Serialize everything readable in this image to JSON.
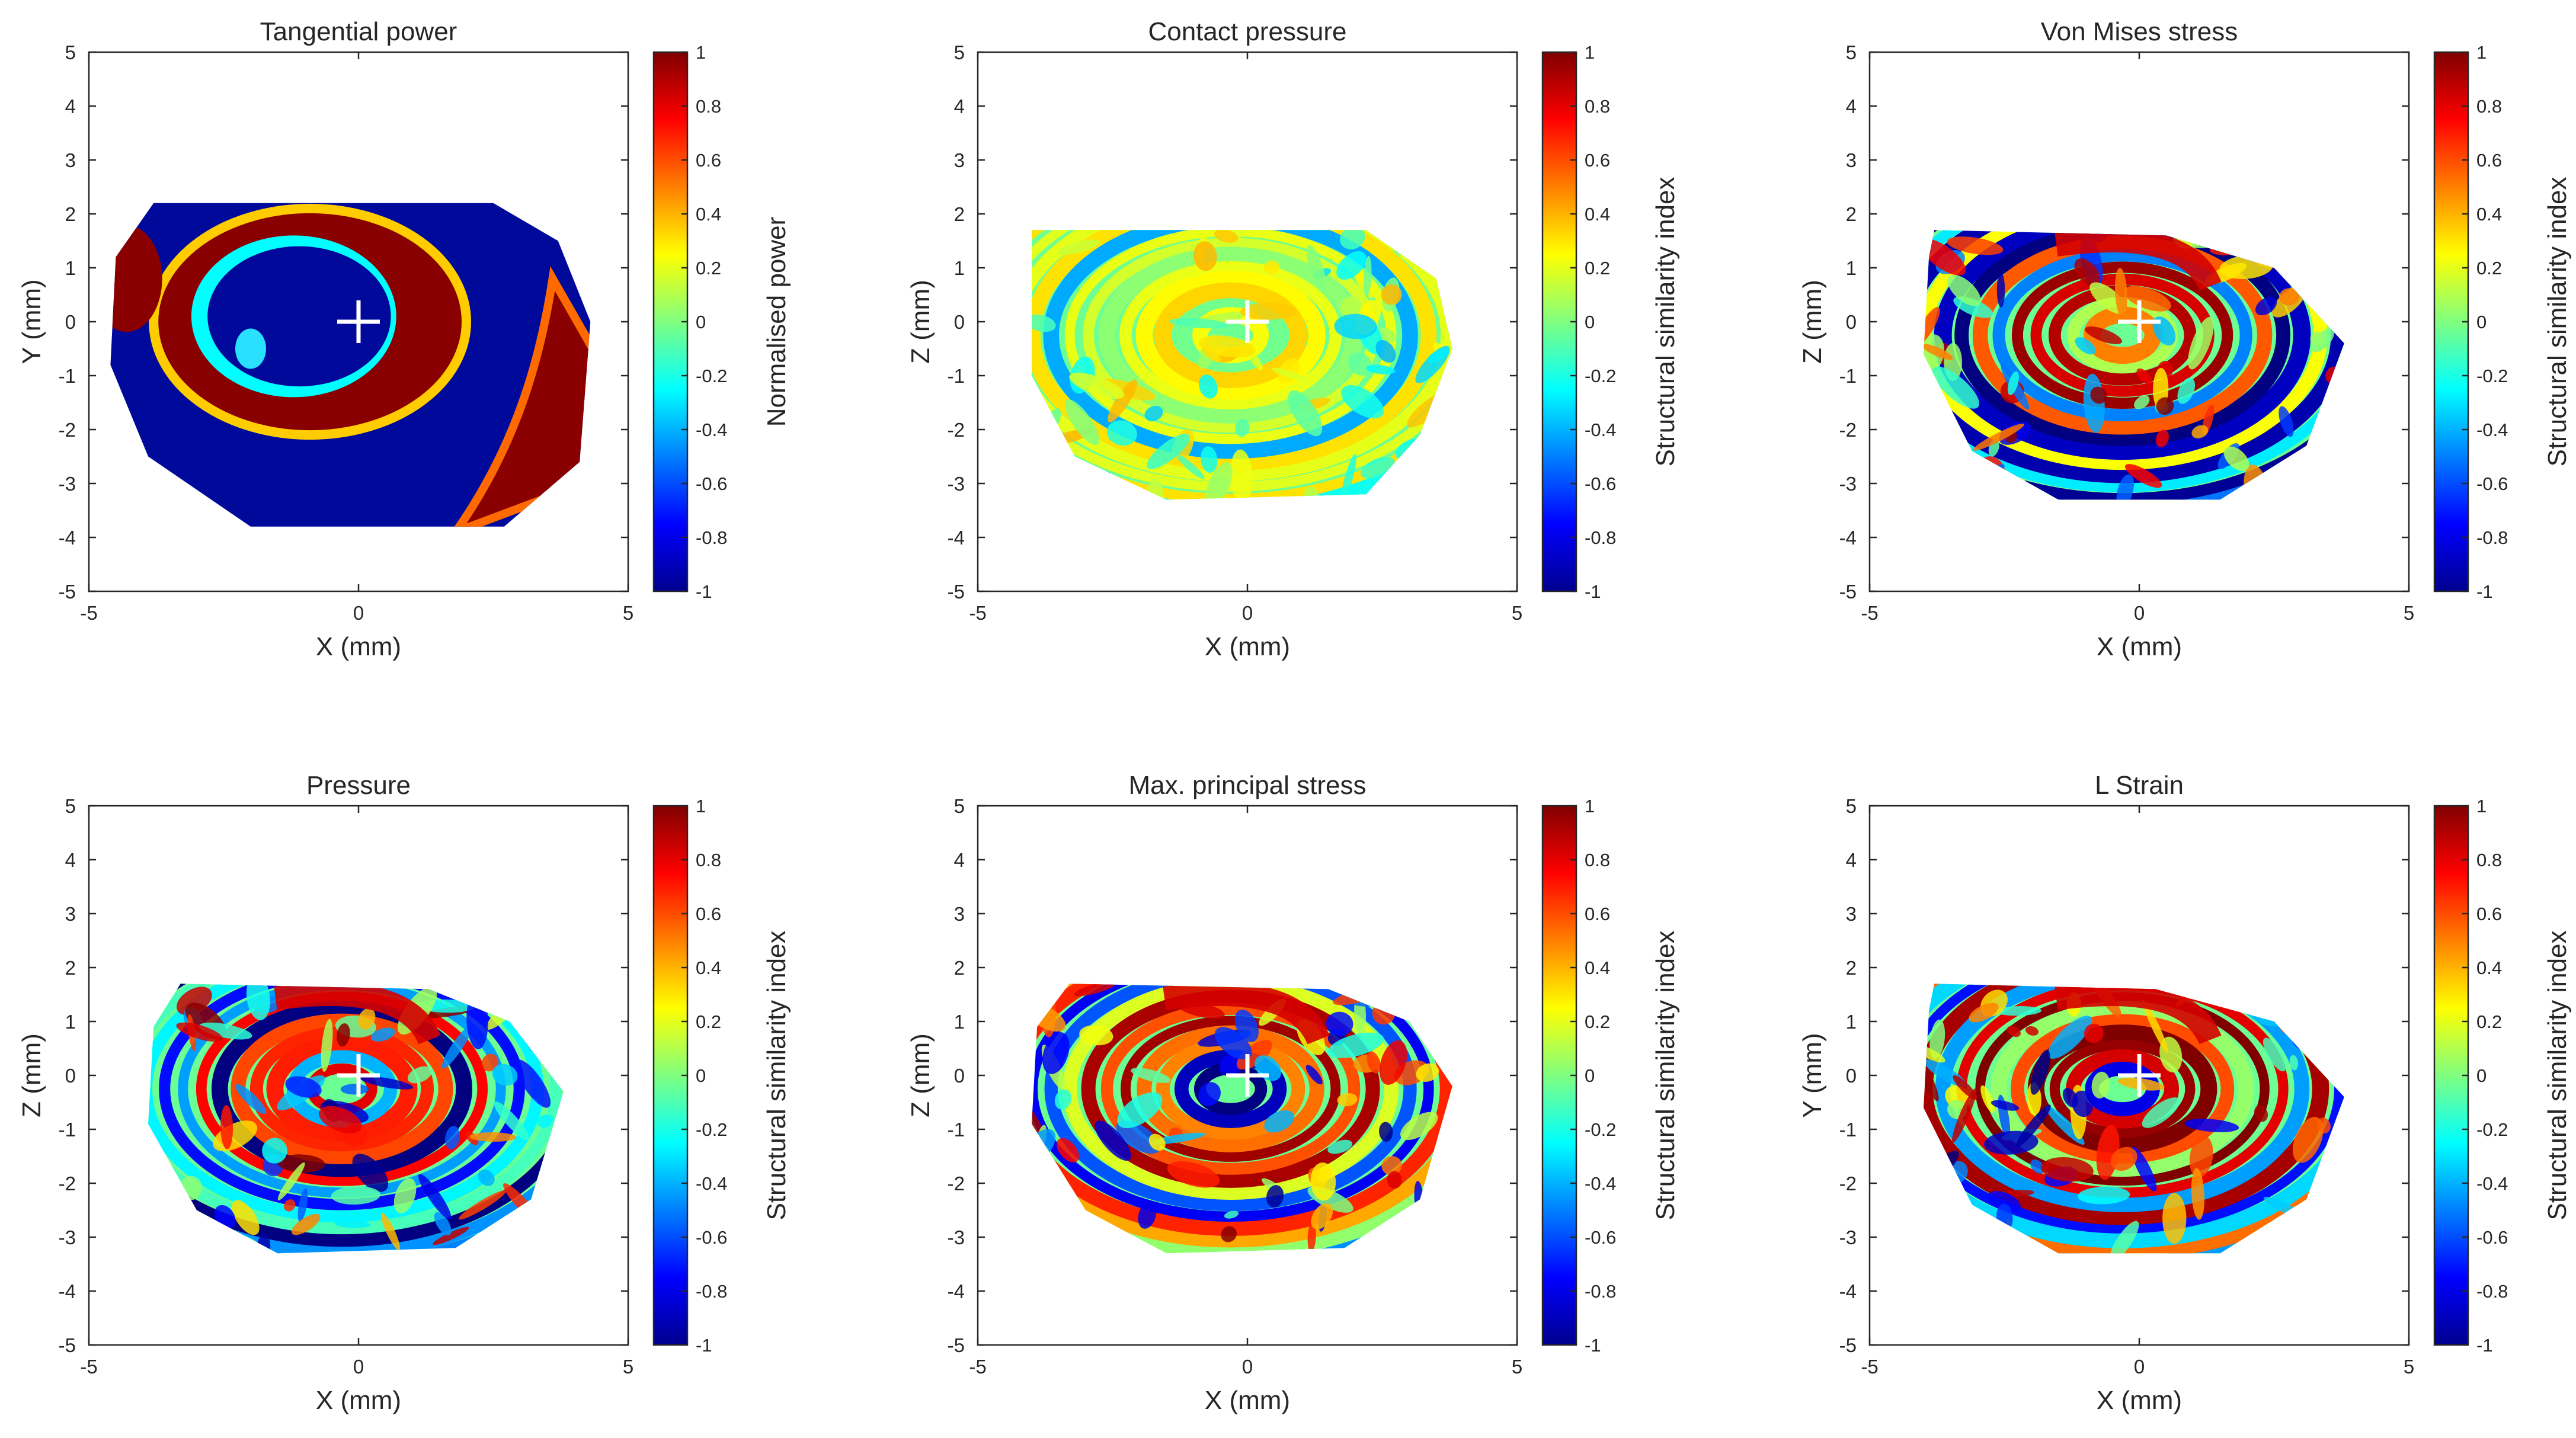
{
  "chart_data": [
    {
      "type": "heatmap",
      "title": "Tangential power",
      "xlabel": "X (mm)",
      "ylabel": "Y (mm)",
      "colorbar_label": "Normalised power",
      "xlim": [
        -5,
        5
      ],
      "ylim": [
        -5,
        5
      ],
      "xticks": [
        "-5",
        "0",
        "5"
      ],
      "yticks": [
        "5",
        "4",
        "3",
        "2",
        "1",
        "0",
        "-1",
        "-2",
        "-3",
        "-4",
        "-5"
      ],
      "clim": [
        -1,
        1
      ],
      "cticks": [
        "1",
        "0.8",
        "0.6",
        "0.4",
        "0.2",
        "0",
        "-0.2",
        "-0.4",
        "-0.6",
        "-0.8",
        "-1"
      ],
      "colormap": "jet",
      "marker": [
        0,
        0
      ],
      "outline_mm": [
        [
          -3.8,
          2.2
        ],
        [
          2.5,
          2.2
        ],
        [
          3.7,
          1.5
        ],
        [
          4.3,
          0
        ],
        [
          4.1,
          -2.6
        ],
        [
          2.7,
          -3.8
        ],
        [
          -2.0,
          -3.8
        ],
        [
          -3.9,
          -2.5
        ],
        [
          -4.6,
          -0.8
        ],
        [
          -4.5,
          1.2
        ]
      ]
    },
    {
      "type": "heatmap",
      "title": "Contact pressure",
      "xlabel": "X (mm)",
      "ylabel": "Z (mm)",
      "colorbar_label": "Structural similarity index",
      "xlim": [
        -5,
        5
      ],
      "ylim": [
        -5,
        5
      ],
      "xticks": [
        "-5",
        "0",
        "5"
      ],
      "yticks": [
        "5",
        "4",
        "3",
        "2",
        "1",
        "0",
        "-1",
        "-2",
        "-3",
        "-4",
        "-5"
      ],
      "clim": [
        -1,
        1
      ],
      "cticks": [
        "1",
        "0.8",
        "0.6",
        "0.4",
        "0.2",
        "0",
        "-0.2",
        "-0.4",
        "-0.6",
        "-0.8",
        "-1"
      ],
      "colormap": "jet",
      "marker": [
        0,
        0
      ],
      "outline_mm": [
        [
          -4.0,
          1.7
        ],
        [
          2.2,
          1.7
        ],
        [
          3.5,
          0.8
        ],
        [
          3.8,
          -0.5
        ],
        [
          3.2,
          -2.1
        ],
        [
          2.2,
          -3.2
        ],
        [
          -1.5,
          -3.3
        ],
        [
          -3.2,
          -2.5
        ],
        [
          -4.0,
          -1.0
        ]
      ]
    },
    {
      "type": "heatmap",
      "title": "Von Mises stress",
      "xlabel": "X (mm)",
      "ylabel": "Z (mm)",
      "colorbar_label": "Structural similarity index",
      "xlim": [
        -5,
        5
      ],
      "ylim": [
        -5,
        5
      ],
      "xticks": [
        "-5",
        "0",
        "5"
      ],
      "yticks": [
        "5",
        "4",
        "3",
        "2",
        "1",
        "0",
        "-1",
        "-2",
        "-3",
        "-4",
        "-5"
      ],
      "clim": [
        -1,
        1
      ],
      "cticks": [
        "1",
        "0.8",
        "0.6",
        "0.4",
        "0.2",
        "0",
        "-0.2",
        "-0.4",
        "-0.6",
        "-0.8",
        "-1"
      ],
      "colormap": "jet",
      "marker": [
        0,
        0
      ],
      "outline_mm": [
        [
          -3.8,
          1.7
        ],
        [
          0.5,
          1.6
        ],
        [
          2.5,
          1.0
        ],
        [
          3.8,
          -0.4
        ],
        [
          3.1,
          -2.3
        ],
        [
          1.5,
          -3.3
        ],
        [
          -1.5,
          -3.3
        ],
        [
          -3.1,
          -2.4
        ],
        [
          -4.0,
          -0.6
        ],
        [
          -3.9,
          1.2
        ]
      ]
    },
    {
      "type": "heatmap",
      "title": "Pressure",
      "xlabel": "X (mm)",
      "ylabel": "Z (mm)",
      "colorbar_label": "Structural similarity index",
      "xlim": [
        -5,
        5
      ],
      "ylim": [
        -5,
        5
      ],
      "xticks": [
        "-5",
        "0",
        "5"
      ],
      "yticks": [
        "5",
        "4",
        "3",
        "2",
        "1",
        "0",
        "-1",
        "-2",
        "-3",
        "-4",
        "-5"
      ],
      "clim": [
        -1,
        1
      ],
      "cticks": [
        "1",
        "0.8",
        "0.6",
        "0.4",
        "0.2",
        "0",
        "-0.2",
        "-0.4",
        "-0.6",
        "-0.8",
        "-1"
      ],
      "colormap": "jet",
      "marker": [
        0,
        0
      ],
      "outline_mm": [
        [
          -3.3,
          1.7
        ],
        [
          1.3,
          1.6
        ],
        [
          2.8,
          1.0
        ],
        [
          3.8,
          -0.3
        ],
        [
          3.2,
          -2.3
        ],
        [
          1.8,
          -3.2
        ],
        [
          -1.5,
          -3.3
        ],
        [
          -3.0,
          -2.5
        ],
        [
          -3.9,
          -0.9
        ],
        [
          -3.8,
          0.9
        ]
      ]
    },
    {
      "type": "heatmap",
      "title": "Max. principal stress",
      "xlabel": "X (mm)",
      "ylabel": "Z (mm)",
      "colorbar_label": "Structural similarity index",
      "xlim": [
        -5,
        5
      ],
      "ylim": [
        -5,
        5
      ],
      "xticks": [
        "-5",
        "0",
        "5"
      ],
      "yticks": [
        "5",
        "4",
        "3",
        "2",
        "1",
        "0",
        "-1",
        "-2",
        "-3",
        "-4",
        "-5"
      ],
      "clim": [
        -1,
        1
      ],
      "cticks": [
        "1",
        "0.8",
        "0.6",
        "0.4",
        "0.2",
        "0",
        "-0.2",
        "-0.4",
        "-0.6",
        "-0.8",
        "-1"
      ],
      "colormap": "jet",
      "marker": [
        0,
        0
      ],
      "outline_mm": [
        [
          -3.3,
          1.7
        ],
        [
          1.5,
          1.6
        ],
        [
          3.0,
          1.0
        ],
        [
          3.8,
          -0.2
        ],
        [
          3.2,
          -2.3
        ],
        [
          1.8,
          -3.2
        ],
        [
          -1.5,
          -3.3
        ],
        [
          -3.0,
          -2.5
        ],
        [
          -4.0,
          -0.9
        ],
        [
          -3.9,
          0.9
        ]
      ]
    },
    {
      "type": "heatmap",
      "title": "L Strain",
      "xlabel": "X (mm)",
      "ylabel": "Y (mm)",
      "colorbar_label": "Structural similarity index",
      "xlim": [
        -5,
        5
      ],
      "ylim": [
        -5,
        5
      ],
      "xticks": [
        "-5",
        "0",
        "5"
      ],
      "yticks": [
        "5",
        "4",
        "3",
        "2",
        "1",
        "0",
        "-1",
        "-2",
        "-3",
        "-4",
        "-5"
      ],
      "clim": [
        -1,
        1
      ],
      "cticks": [
        "1",
        "0.8",
        "0.6",
        "0.4",
        "0.2",
        "0",
        "-0.2",
        "-0.4",
        "-0.6",
        "-0.8",
        "-1"
      ],
      "colormap": "jet",
      "marker": [
        0,
        0
      ],
      "outline_mm": [
        [
          -3.8,
          1.7
        ],
        [
          0.3,
          1.6
        ],
        [
          2.5,
          1.0
        ],
        [
          3.8,
          -0.4
        ],
        [
          3.1,
          -2.3
        ],
        [
          1.5,
          -3.3
        ],
        [
          -1.5,
          -3.3
        ],
        [
          -3.1,
          -2.4
        ],
        [
          -4.0,
          -0.6
        ],
        [
          -3.9,
          1.2
        ]
      ]
    }
  ]
}
